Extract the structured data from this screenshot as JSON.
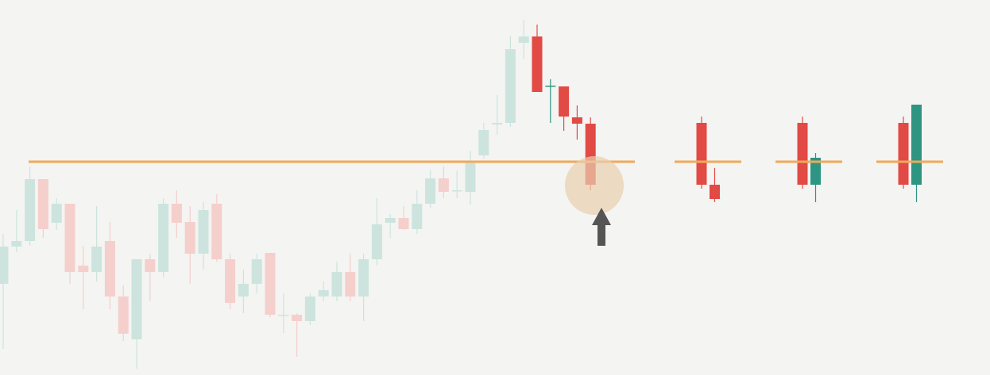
{
  "chart_data": {
    "type": "candlestick",
    "ylim": [
      0,
      473
    ],
    "level": 269,
    "level_color": "#f0a95a",
    "candles": {
      "open": [
        115,
        162,
        169,
        247,
        192,
        216,
        138,
        130,
        169,
        99,
        45,
        146,
        130,
        216,
        193,
        153,
        216,
        146,
        99,
        115,
        154,
        75,
        76,
        68,
        99,
        99,
        130,
        99,
        146,
        192,
        198,
        184,
        216,
        248,
        232,
        231,
        277,
        316,
        318,
        419,
        427,
        364,
        364,
        325,
        317
      ],
      "high": [
        178,
        208,
        263,
        247,
        223,
        216,
        163,
        213,
        193,
        113,
        146,
        153,
        223,
        233,
        213,
        218,
        228,
        153,
        133,
        153,
        154,
        103,
        78,
        103,
        118,
        143,
        153,
        153,
        223,
        203,
        213,
        233,
        258,
        263,
        258,
        283,
        318,
        353,
        428,
        448,
        442,
        373,
        364,
        340,
        325
      ],
      "low": [
        33,
        155,
        163,
        173,
        183,
        115,
        83,
        118,
        83,
        43,
        8,
        93,
        123,
        173,
        115,
        133,
        143,
        83,
        78,
        103,
        73,
        53,
        23,
        63,
        93,
        93,
        93,
        68,
        138,
        173,
        183,
        178,
        211,
        223,
        223,
        215,
        273,
        303,
        313,
        398,
        357,
        318,
        308,
        297,
        233
      ],
      "close": [
        162,
        169,
        247,
        184,
        216,
        130,
        130,
        162,
        99,
        52,
        146,
        130,
        216,
        192,
        153,
        208,
        146,
        91,
        115,
        146,
        76,
        76,
        68,
        99,
        107,
        130,
        99,
        146,
        190,
        198,
        184,
        216,
        248,
        231,
        233,
        270,
        309,
        318,
        411,
        427,
        357,
        365,
        326,
        317,
        240
      ],
      "colors": [
        "#cde4de",
        "#cde4de",
        "#cde4de",
        "#f5cfcb",
        "#cde4de",
        "#f5cfcb",
        "#f5cfcb",
        "#cde4de",
        "#f5cfcb",
        "#f5cfcb",
        "#cde4de",
        "#f5cfcb",
        "#cde4de",
        "#f5cfcb",
        "#f5cfcb",
        "#cde4de",
        "#f5cfcb",
        "#f5cfcb",
        "#cde4de",
        "#cde4de",
        "#f5cfcb",
        "#cde4de",
        "#f5cfcb",
        "#cde4de",
        "#cde4de",
        "#cde4de",
        "#f5cfcb",
        "#cde4de",
        "#cde4de",
        "#cde4de",
        "#f5cfcb",
        "#cde4de",
        "#cde4de",
        "#f5cfcb",
        "#cde4de",
        "#cde4de",
        "#cde4de",
        "#cde4de",
        "#cde4de",
        "#cde4de",
        "#e24a45",
        "#2d9581",
        "#e24a45",
        "#e24a45",
        "#e24a45"
      ]
    },
    "examples": [
      {
        "open": [
          318,
          240
        ],
        "high": [
          326,
          261
        ],
        "low": [
          235,
          218
        ],
        "close": [
          240,
          222
        ],
        "colors": [
          "#e24a45",
          "#e24a45"
        ]
      },
      {
        "open": [
          318,
          240
        ],
        "high": [
          326,
          280
        ],
        "low": [
          235,
          218
        ],
        "close": [
          240,
          274
        ],
        "colors": [
          "#e24a45",
          "#2d9581"
        ]
      },
      {
        "open": [
          318,
          240
        ],
        "high": [
          326,
          341
        ],
        "low": [
          235,
          218
        ],
        "close": [
          240,
          341
        ],
        "colors": [
          "#e24a45",
          "#2d9581"
        ]
      }
    ]
  }
}
